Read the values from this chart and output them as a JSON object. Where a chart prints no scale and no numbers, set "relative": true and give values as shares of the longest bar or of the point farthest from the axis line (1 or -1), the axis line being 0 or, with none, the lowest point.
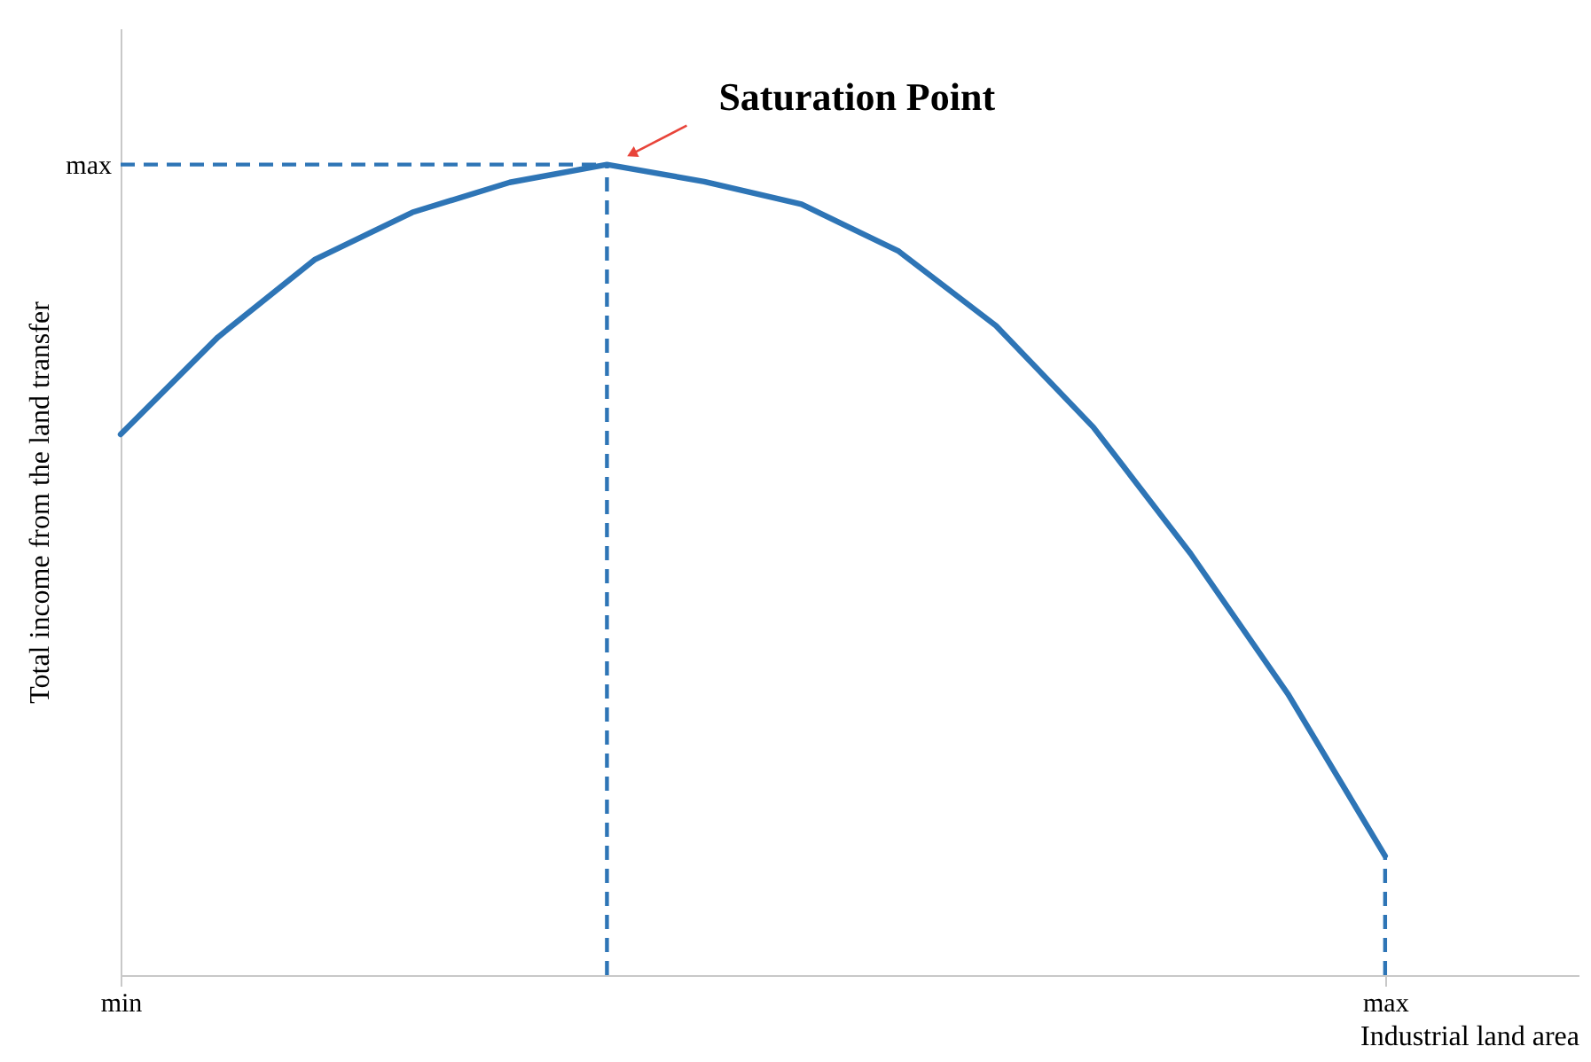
{
  "chart_data": {
    "type": "line",
    "relative": true,
    "xlabel": "Industrial land area",
    "ylabel": "Total income from the land transfer",
    "categories": [
      "min",
      null,
      null,
      null,
      null,
      null,
      null,
      null,
      null,
      null,
      null,
      null,
      null,
      "max"
    ],
    "series": [
      {
        "color": "#2e75b6",
        "values": [
          0.667,
          0.787,
          0.883,
          0.941,
          0.978,
          1,
          0.979,
          0.951,
          0.893,
          0.801,
          0.676,
          0.52,
          0.347,
          0.147
        ]
      }
    ],
    "ref_lines": [
      {
        "axis": "y",
        "value": 1,
        "label": "max",
        "color": "#2e75b6",
        "line_style": "dashed"
      },
      {
        "axis": "x",
        "label": null,
        "color": "#2e75b6",
        "line_style": "dashed"
      },
      {
        "axis": "x",
        "value": "max",
        "label": null,
        "color": "#2e75b6",
        "line_style": "dashed"
      }
    ],
    "annotations": [
      "Saturation Point"
    ]
  }
}
